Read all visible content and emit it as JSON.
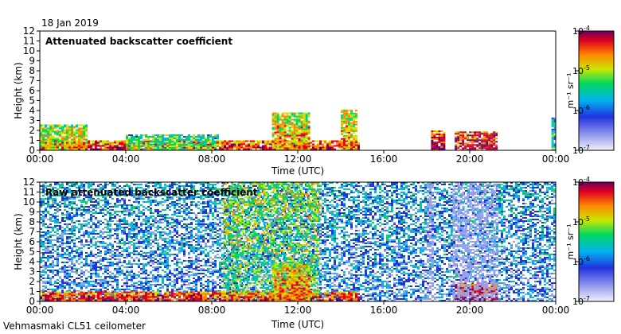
{
  "header": {
    "date": "18 Jan 2019"
  },
  "footer": {
    "site_label": "Vehmasmaki CL51 ceilometer"
  },
  "chart_data": [
    {
      "type": "heatmap",
      "title": "Attenuated backscatter coefficient",
      "xlabel": "Time (UTC)",
      "ylabel": "Height (km)",
      "xlim": [
        0,
        24
      ],
      "ylim": [
        0,
        12
      ],
      "x_ticks": [
        "00:00",
        "04:00",
        "08:00",
        "12:00",
        "16:00",
        "20:00",
        "00:00"
      ],
      "y_ticks": [
        0,
        1,
        2,
        3,
        4,
        5,
        6,
        7,
        8,
        9,
        10,
        11,
        12
      ],
      "colorbar": {
        "label": "m⁻¹ sr⁻¹",
        "scale": "log",
        "range": [
          1e-07,
          0.0001
        ],
        "ticks": [
          {
            "base": "10",
            "exp": "-4",
            "value": 0.0001
          },
          {
            "base": "10",
            "exp": "-5",
            "value": 1e-05
          },
          {
            "base": "10",
            "exp": "-6",
            "value": 1e-06
          },
          {
            "base": "10",
            "exp": "-7",
            "value": 1e-07
          }
        ]
      },
      "features": [
        {
          "name": "surface layer",
          "t_start": 0,
          "t_end": 14.8,
          "top_km": 1.0,
          "intensity": 0.75
        },
        {
          "name": "low cloud 00-02",
          "t_start": 0,
          "t_end": 2.2,
          "top_km": 2.6,
          "intensity": 0.55
        },
        {
          "name": "cloud 04-08",
          "t_start": 4.0,
          "t_end": 8.3,
          "top_km": 1.6,
          "intensity": 0.45
        },
        {
          "name": "convective cloud 11",
          "t_start": 10.8,
          "t_end": 12.5,
          "top_km": 3.8,
          "intensity": 0.6
        },
        {
          "name": "convective cloud 14",
          "t_start": 14.0,
          "t_end": 14.7,
          "top_km": 4.1,
          "intensity": 0.6
        },
        {
          "name": "cloud 18",
          "t_start": 18.2,
          "t_end": 18.8,
          "top_km": 2.0,
          "intensity": 0.8
        },
        {
          "name": "cloud 19-21",
          "t_start": 19.3,
          "t_end": 21.2,
          "top_km": 1.9,
          "intensity": 0.8
        },
        {
          "name": "cloud 23.9",
          "t_start": 23.8,
          "t_end": 24.0,
          "top_km": 3.3,
          "intensity": 0.35
        }
      ]
    },
    {
      "type": "heatmap",
      "title": "Raw attenuated backscatter coefficient",
      "xlabel": "Time (UTC)",
      "ylabel": "Height (km)",
      "xlim": [
        0,
        24
      ],
      "ylim": [
        0,
        12
      ],
      "x_ticks": [
        "00:00",
        "04:00",
        "08:00",
        "12:00",
        "16:00",
        "20:00",
        "00:00"
      ],
      "y_ticks": [
        0,
        1,
        2,
        3,
        4,
        5,
        6,
        7,
        8,
        9,
        10,
        11,
        12
      ],
      "colorbar": {
        "label": "m⁻¹ sr⁻¹",
        "scale": "log",
        "range": [
          1e-07,
          0.0001
        ],
        "ticks": [
          {
            "base": "10",
            "exp": "-4",
            "value": 0.0001
          },
          {
            "base": "10",
            "exp": "-5",
            "value": 1e-05
          },
          {
            "base": "10",
            "exp": "-6",
            "value": 1e-06
          },
          {
            "base": "10",
            "exp": "-7",
            "value": 1e-07
          }
        ]
      },
      "features": [
        {
          "name": "daytime noise",
          "t_start": 0,
          "t_end": 24,
          "top_km": 12,
          "intensity": 0.35
        },
        {
          "name": "strong noise 08-13",
          "t_start": 8.5,
          "t_end": 13.0,
          "top_km": 12,
          "intensity": 0.6
        },
        {
          "name": "surface layer",
          "t_start": 0,
          "t_end": 14.8,
          "top_km": 1.0,
          "intensity": 0.75
        },
        {
          "name": "convective cloud 11",
          "t_start": 10.8,
          "t_end": 12.5,
          "top_km": 3.8,
          "intensity": 0.65
        },
        {
          "name": "cloud 19-21",
          "t_start": 19.3,
          "t_end": 21.2,
          "top_km": 1.9,
          "intensity": 0.8
        },
        {
          "name": "rain column 18",
          "t_start": 18.0,
          "t_end": 18.3,
          "top_km": 12,
          "intensity": 0.1
        },
        {
          "name": "rain column 19.3",
          "t_start": 19.2,
          "t_end": 21.3,
          "top_km": 12,
          "intensity": 0.1
        }
      ]
    }
  ]
}
